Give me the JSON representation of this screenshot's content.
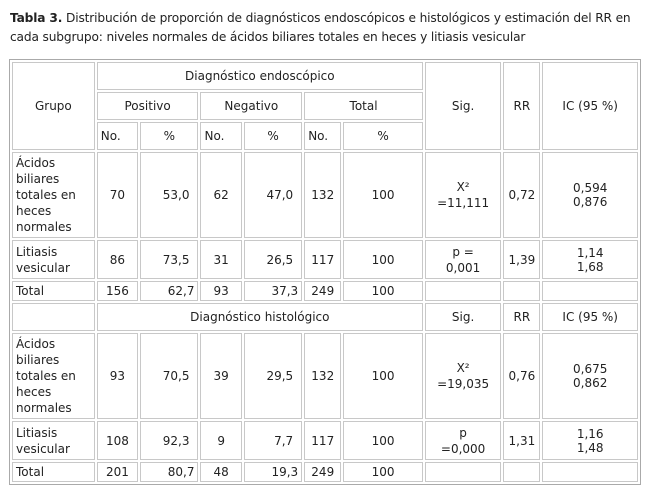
{
  "caption": {
    "label": "Tabla 3.",
    "text": " Distribución de proporción de diagnósticos endoscópicos e histológicos y estimación del RR en cada subgrupo: niveles normales de ácidos biliares totales en heces y litiasis vesicular"
  },
  "headers": {
    "grupo": "Grupo",
    "endo": "Diagnóstico endoscópico",
    "histo": "Diagnóstico histológico",
    "positivo": "Positivo",
    "negativo": "Negativo",
    "total": "Total",
    "no": "No.",
    "pct": "%",
    "sig": "Sig.",
    "rr": "RR",
    "ic": "IC (95 %)"
  },
  "endoscopic": [
    {
      "group": "Ácidos biliares totales en heces normales",
      "pos_no": "70",
      "pos_pct": "53,0",
      "neg_no": "62",
      "neg_pct": "47,0",
      "tot_no": "132",
      "tot_pct": "100",
      "sig1": "X²",
      "sig2": "=11,111",
      "rr": "0,72",
      "ic1": "0,594",
      "ic2": "0,876"
    },
    {
      "group": "Litiasis vesicular",
      "pos_no": "86",
      "pos_pct": "73,5",
      "neg_no": "31",
      "neg_pct": "26,5",
      "tot_no": "117",
      "tot_pct": "100",
      "sig1": "p =",
      "sig2": "0,001",
      "rr": "1,39",
      "ic1": "1,14",
      "ic2": "1,68"
    },
    {
      "group": "Total",
      "pos_no": "156",
      "pos_pct": "62,7",
      "neg_no": "93",
      "neg_pct": "37,3",
      "tot_no": "249",
      "tot_pct": "100"
    }
  ],
  "histologic": [
    {
      "group": "Ácidos biliares totales en heces normales",
      "pos_no": "93",
      "pos_pct": "70,5",
      "neg_no": "39",
      "neg_pct": "29,5",
      "tot_no": "132",
      "tot_pct": "100",
      "sig1": "X²",
      "sig2": "=19,035",
      "rr": "0,76",
      "ic1": "0,675",
      "ic2": "0,862"
    },
    {
      "group": "Litiasis vesicular",
      "pos_no": "108",
      "pos_pct": "92,3",
      "neg_no": "9",
      "neg_pct": "7,7",
      "tot_no": "117",
      "tot_pct": "100",
      "sig1": "p",
      "sig2": "=0,000",
      "rr": "1,31",
      "ic1": "1,16",
      "ic2": "1,48"
    },
    {
      "group": "Total",
      "pos_no": "201",
      "pos_pct": "80,7",
      "neg_no": "48",
      "neg_pct": "19,3",
      "tot_no": "249",
      "tot_pct": "100"
    }
  ]
}
